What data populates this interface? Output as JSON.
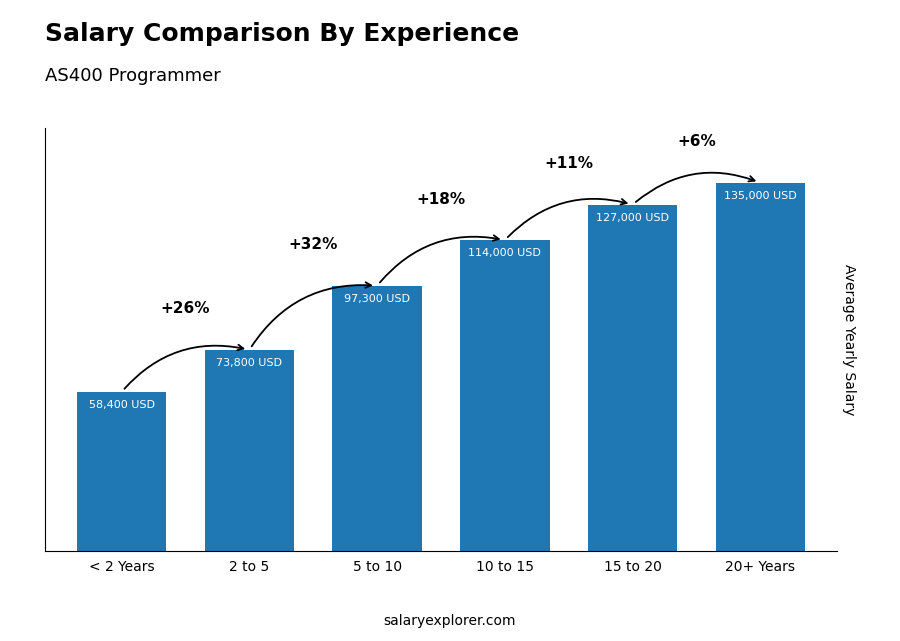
{
  "chart_data": {
    "type": "bar",
    "title": "Salary Comparison By Experience",
    "subtitle": "AS400 Programmer",
    "categories": [
      "< 2 Years",
      "2 to 5",
      "5 to 10",
      "10 to 15",
      "15 to 20",
      "20+ Years"
    ],
    "values": [
      58400,
      73800,
      97300,
      114000,
      127000,
      135000
    ],
    "value_labels": [
      "58,400 USD",
      "73,800 USD",
      "97,300 USD",
      "114,000 USD",
      "127,000 USD",
      "135,000 USD"
    ],
    "data_labels": true,
    "annotations": [
      "+26%",
      "+32%",
      "+18%",
      "+11%",
      "+6%"
    ],
    "y_label": "Average Yearly Salary",
    "footer": "salaryexplorer.com",
    "ylim": [
      0,
      155000
    ],
    "tick_labels": "x",
    "grid": false
  }
}
